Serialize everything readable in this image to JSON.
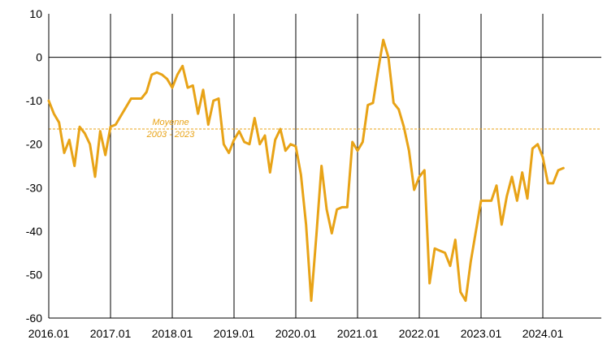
{
  "chart_data": {
    "type": "line",
    "title": "",
    "xlabel": "",
    "ylabel": "",
    "ylim": [
      -60,
      10
    ],
    "yticks": [
      10,
      0,
      -10,
      -20,
      -30,
      -40,
      -50,
      -60
    ],
    "xlim": [
      "2016-01",
      "2025-01"
    ],
    "xticks": [
      "2016.01",
      "2017.01",
      "2018.01",
      "2019.01",
      "2020.01",
      "2021.01",
      "2022.01",
      "2023.01",
      "2024.01"
    ],
    "grid": "vertical lines at each year",
    "legend": "none",
    "colors": {
      "series": "#E8A317",
      "average": "#E8A317",
      "axes": "#000000"
    },
    "average": {
      "value": -16.5,
      "label_line1": "Moyenne",
      "label_line2": "2003 - 2023"
    },
    "series": [
      {
        "x": [
          "2016-01",
          "2016-02",
          "2016-03",
          "2016-04",
          "2016-05",
          "2016-06",
          "2016-07",
          "2016-08",
          "2016-09",
          "2016-10",
          "2016-11",
          "2016-12",
          "2017-01",
          "2017-02",
          "2017-03",
          "2017-04",
          "2017-05",
          "2017-06",
          "2017-07",
          "2017-08",
          "2017-09",
          "2017-10",
          "2017-11",
          "2017-12",
          "2018-01",
          "2018-02",
          "2018-03",
          "2018-04",
          "2018-05",
          "2018-06",
          "2018-07",
          "2018-08",
          "2018-09",
          "2018-10",
          "2018-11",
          "2018-12",
          "2019-01",
          "2019-02",
          "2019-03",
          "2019-04",
          "2019-05",
          "2019-06",
          "2019-07",
          "2019-08",
          "2019-09",
          "2019-10",
          "2019-11",
          "2019-12",
          "2020-01",
          "2020-02",
          "2020-03",
          "2020-04",
          "2020-05",
          "2020-06",
          "2020-07",
          "2020-08",
          "2020-09",
          "2020-10",
          "2020-11",
          "2020-12",
          "2021-01",
          "2021-02",
          "2021-03",
          "2021-04",
          "2021-05",
          "2021-06",
          "2021-07",
          "2021-08",
          "2021-09",
          "2021-10",
          "2021-11",
          "2021-12",
          "2022-01",
          "2022-02",
          "2022-03",
          "2022-04",
          "2022-05",
          "2022-06",
          "2022-07",
          "2022-08",
          "2022-09",
          "2022-10",
          "2022-11",
          "2022-12",
          "2023-01",
          "2023-02",
          "2023-03",
          "2023-04",
          "2023-05",
          "2023-06",
          "2023-07",
          "2023-08",
          "2023-09",
          "2023-10",
          "2023-11",
          "2023-12",
          "2024-01",
          "2024-02",
          "2024-03",
          "2024-04",
          "2024-05"
        ],
        "values": [
          -10,
          -13,
          -15,
          -22,
          -19,
          -25,
          -16,
          -17.5,
          -20,
          -27.5,
          -17,
          -22.5,
          -16,
          -15.5,
          -13.5,
          -11.5,
          -9.5,
          -9.5,
          -9.5,
          -8,
          -4,
          -3.5,
          -4,
          -5,
          -7,
          -4,
          -2,
          -7,
          -6.5,
          -13,
          -7.5,
          -15.5,
          -10,
          -9.5,
          -20,
          -22,
          -19,
          -17,
          -19.5,
          -20,
          -14,
          -20,
          -18,
          -26.5,
          -19,
          -16.5,
          -21.5,
          -20,
          -20.5,
          -27,
          -38.5,
          -56,
          -41,
          -25,
          -35,
          -40.5,
          -35,
          -34.5,
          -34.5,
          -19.5,
          -21.5,
          -19.5,
          -11,
          -10.5,
          -3,
          4,
          0,
          -10.5,
          -12,
          -16,
          -21.5,
          -30.5,
          -27.5,
          -26,
          -52,
          -44,
          -44.5,
          -45,
          -48,
          -42,
          -54,
          -56,
          -47,
          -40,
          -33,
          -33,
          -33,
          -29.5,
          -38.5,
          -32,
          -27.5,
          -33,
          -26.5,
          -32.5,
          -21,
          -20,
          -23,
          -29,
          -29,
          -26,
          -25.5
        ]
      }
    ]
  }
}
